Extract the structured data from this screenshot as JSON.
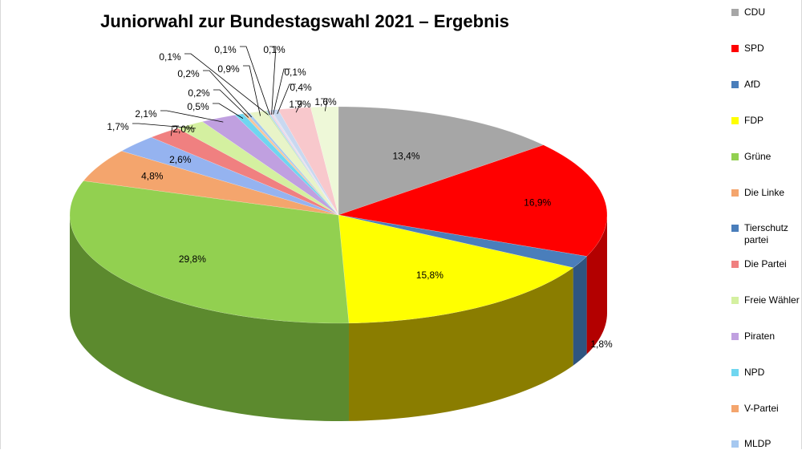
{
  "chart_data": {
    "type": "pie",
    "title": "Juniorwahl zur Bundestagswahl 2021 – Ergebnis",
    "legend_position": "right",
    "legend": [
      "CDU",
      "SPD",
      "AfD",
      "FDP",
      "Grüne",
      "Die Linke",
      "Tierschutz partei",
      "Die Partei",
      "Freie Wähler",
      "Piraten",
      "NPD",
      "V-Partei",
      "MLDP"
    ],
    "slices": [
      {
        "name": "CDU",
        "value": 13.4,
        "label": "13,4%",
        "color": "#a6a6a6",
        "side": "#7a7a7a"
      },
      {
        "name": "SPD",
        "value": 16.9,
        "label": "16,9%",
        "color": "#ff0000",
        "side": "#b30000"
      },
      {
        "name": "AfD",
        "value": 1.8,
        "label": "1,8%",
        "color": "#4a7ebb",
        "side": "#2f5580"
      },
      {
        "name": "FDP",
        "value": 15.8,
        "label": "15,8%",
        "color": "#ffff00",
        "side": "#8a7d00"
      },
      {
        "name": "Grüne",
        "value": 29.8,
        "label": "29,8%",
        "color": "#92d050",
        "side": "#5c8a2e"
      },
      {
        "name": "Die Linke",
        "value": 4.8,
        "label": "4,8%",
        "color": "#f4a56d",
        "side": "#c47a45"
      },
      {
        "name": "Tierschutz partei",
        "value": 2.6,
        "label": "2,6%",
        "color": "#95b3f0",
        "side": "#6582c0"
      },
      {
        "name": "Die Partei",
        "value": 2.0,
        "label": "2,0%",
        "color": "#f08080",
        "side": "#c05656"
      },
      {
        "name": "Freie Wähler",
        "value": 1.7,
        "label": "1,7%",
        "color": "#d4f0a0",
        "side": "#a6c47a"
      },
      {
        "name": "Piraten",
        "value": 2.1,
        "label": "2,1%",
        "color": "#c0a0e0",
        "side": "#8f72b0"
      },
      {
        "name": "NPD",
        "value": 0.5,
        "label": "0,5%",
        "color": "#6fd6f0",
        "side": "#45a6c0"
      },
      {
        "name": "V-Partei",
        "value": 0.2,
        "label": "0,2%",
        "color": "#f8c69a",
        "side": "#c89670"
      },
      {
        "name": "MLDP",
        "value": 0.2,
        "label": "0,2%",
        "color": "#a6c8f0",
        "side": "#7698c0"
      },
      {
        "name": "",
        "value": 0.9,
        "label": "0,9%",
        "color": "#e8f4c8",
        "side": "#b8c498"
      },
      {
        "name": "",
        "value": 0.1,
        "label": "0,1%",
        "color": "#d0e8b0",
        "side": "#a0b880"
      },
      {
        "name": "",
        "value": 0.1,
        "label": "0,1%",
        "color": "#b0d8f0",
        "side": "#80a8c0"
      },
      {
        "name": "",
        "value": 0.1,
        "label": "0,1%",
        "color": "#f0d0e0",
        "side": "#c0a0b0"
      },
      {
        "name": "",
        "value": 0.1,
        "label": "0,1%",
        "color": "#e0e0f0",
        "side": "#b0b0c0"
      },
      {
        "name": "",
        "value": 0.4,
        "label": "0,4%",
        "color": "#c8d8f0",
        "side": "#98a8c0"
      },
      {
        "name": "",
        "value": 1.9,
        "label": "1,9%",
        "color": "#f8c8cc",
        "side": "#c8989c"
      },
      {
        "name": "",
        "value": 1.6,
        "label": "1,6%",
        "color": "#eef8d8",
        "side": "#bec8a8"
      }
    ]
  },
  "legend_colors": [
    "#a6a6a6",
    "#ff0000",
    "#4a7ebb",
    "#ffff00",
    "#92d050",
    "#f4a56d",
    "#4a7ebb",
    "#f08080",
    "#d4f0a0",
    "#c0a0e0",
    "#6fd6f0",
    "#f4a56d",
    "#a6c8f0"
  ]
}
